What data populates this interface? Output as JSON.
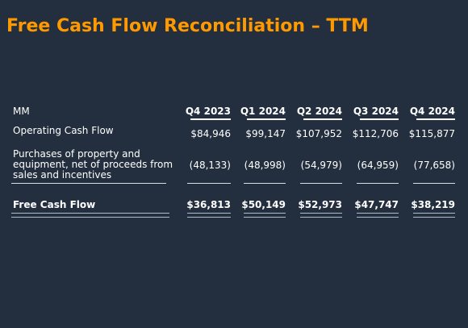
{
  "slide": {
    "title": "Free Cash Flow Reconciliation – TTM"
  },
  "table": {
    "unit_label": "MM",
    "columns": [
      "Q4 2023",
      "Q1 2024",
      "Q2 2024",
      "Q3 2024",
      "Q4 2024"
    ],
    "rows": [
      {
        "label": "Operating Cash Flow",
        "values": [
          "$84,946",
          "$99,147",
          "$107,952",
          "$112,706",
          "$115,877"
        ]
      },
      {
        "label": "Purchases of property and equipment, net of proceeds from sales and incentives",
        "values": [
          "(48,133)",
          "(48,998)",
          "(54,979)",
          "(64,959)",
          "(77,658)"
        ]
      },
      {
        "label": "Free Cash Flow",
        "values": [
          "$36,813",
          "$50,149",
          "$52,973",
          "$47,747",
          "$38,219"
        ]
      }
    ]
  },
  "colors": {
    "background": "#232f3e",
    "title": "#ff9900",
    "text": "#ffffff"
  }
}
